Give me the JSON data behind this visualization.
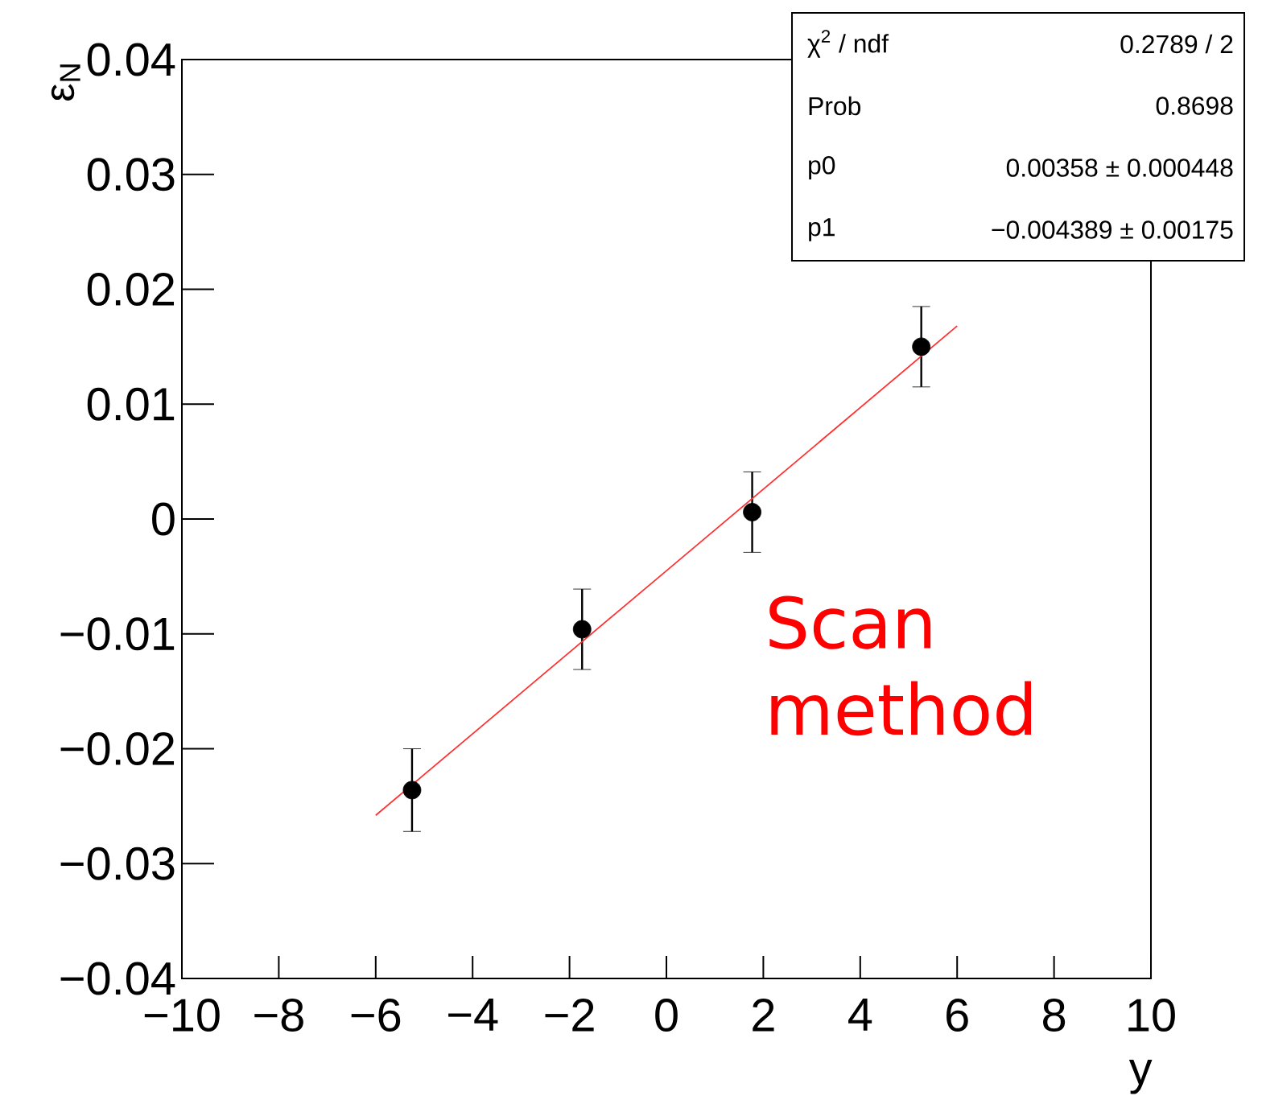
{
  "chart_data": {
    "type": "scatter",
    "xlabel": "y",
    "ylabel": "ε$_{N}$",
    "annotations": [
      "χ$^{2}$ / ndf",
      "0.2789 / 2",
      "Prob",
      "0.8698",
      "p0",
      "0.00358 ± 0.000448",
      "p1",
      "−0.004389 ± 0.00175",
      "Scan method"
    ],
    "xlim": [
      -10,
      10
    ],
    "ylim": [
      -0.04,
      0.04
    ],
    "xticks": [
      {
        "value": -10,
        "label": "−10"
      },
      {
        "value": -8,
        "label": "−8"
      },
      {
        "value": -6,
        "label": "−6"
      },
      {
        "value": -4,
        "label": "−4"
      },
      {
        "value": -2,
        "label": "−2"
      },
      0,
      2,
      4,
      6,
      8,
      10
    ],
    "yticks": [
      {
        "value": -0.04,
        "label": "−0.04"
      },
      {
        "value": -0.03,
        "label": "−0.03"
      },
      {
        "value": -0.02,
        "label": "−0.02"
      },
      {
        "value": -0.01,
        "label": "−0.01"
      },
      0,
      0.01,
      0.02,
      0.03,
      0.04
    ],
    "series": [
      {
        "marker": "circle",
        "color": "#000000",
        "x": [
          -5.25,
          -1.74,
          1.77,
          5.26
        ],
        "values": [
          -0.0236,
          -0.0096,
          0.0006,
          0.015
        ],
        "errors": [
          0.0036,
          0.0035,
          0.0035,
          0.0035
        ]
      },
      {
        "type": "line",
        "marker": "none",
        "color": "#ff3030",
        "x": [
          -6,
          6
        ],
        "values": [
          -0.0258,
          0.0168
        ]
      }
    ]
  }
}
